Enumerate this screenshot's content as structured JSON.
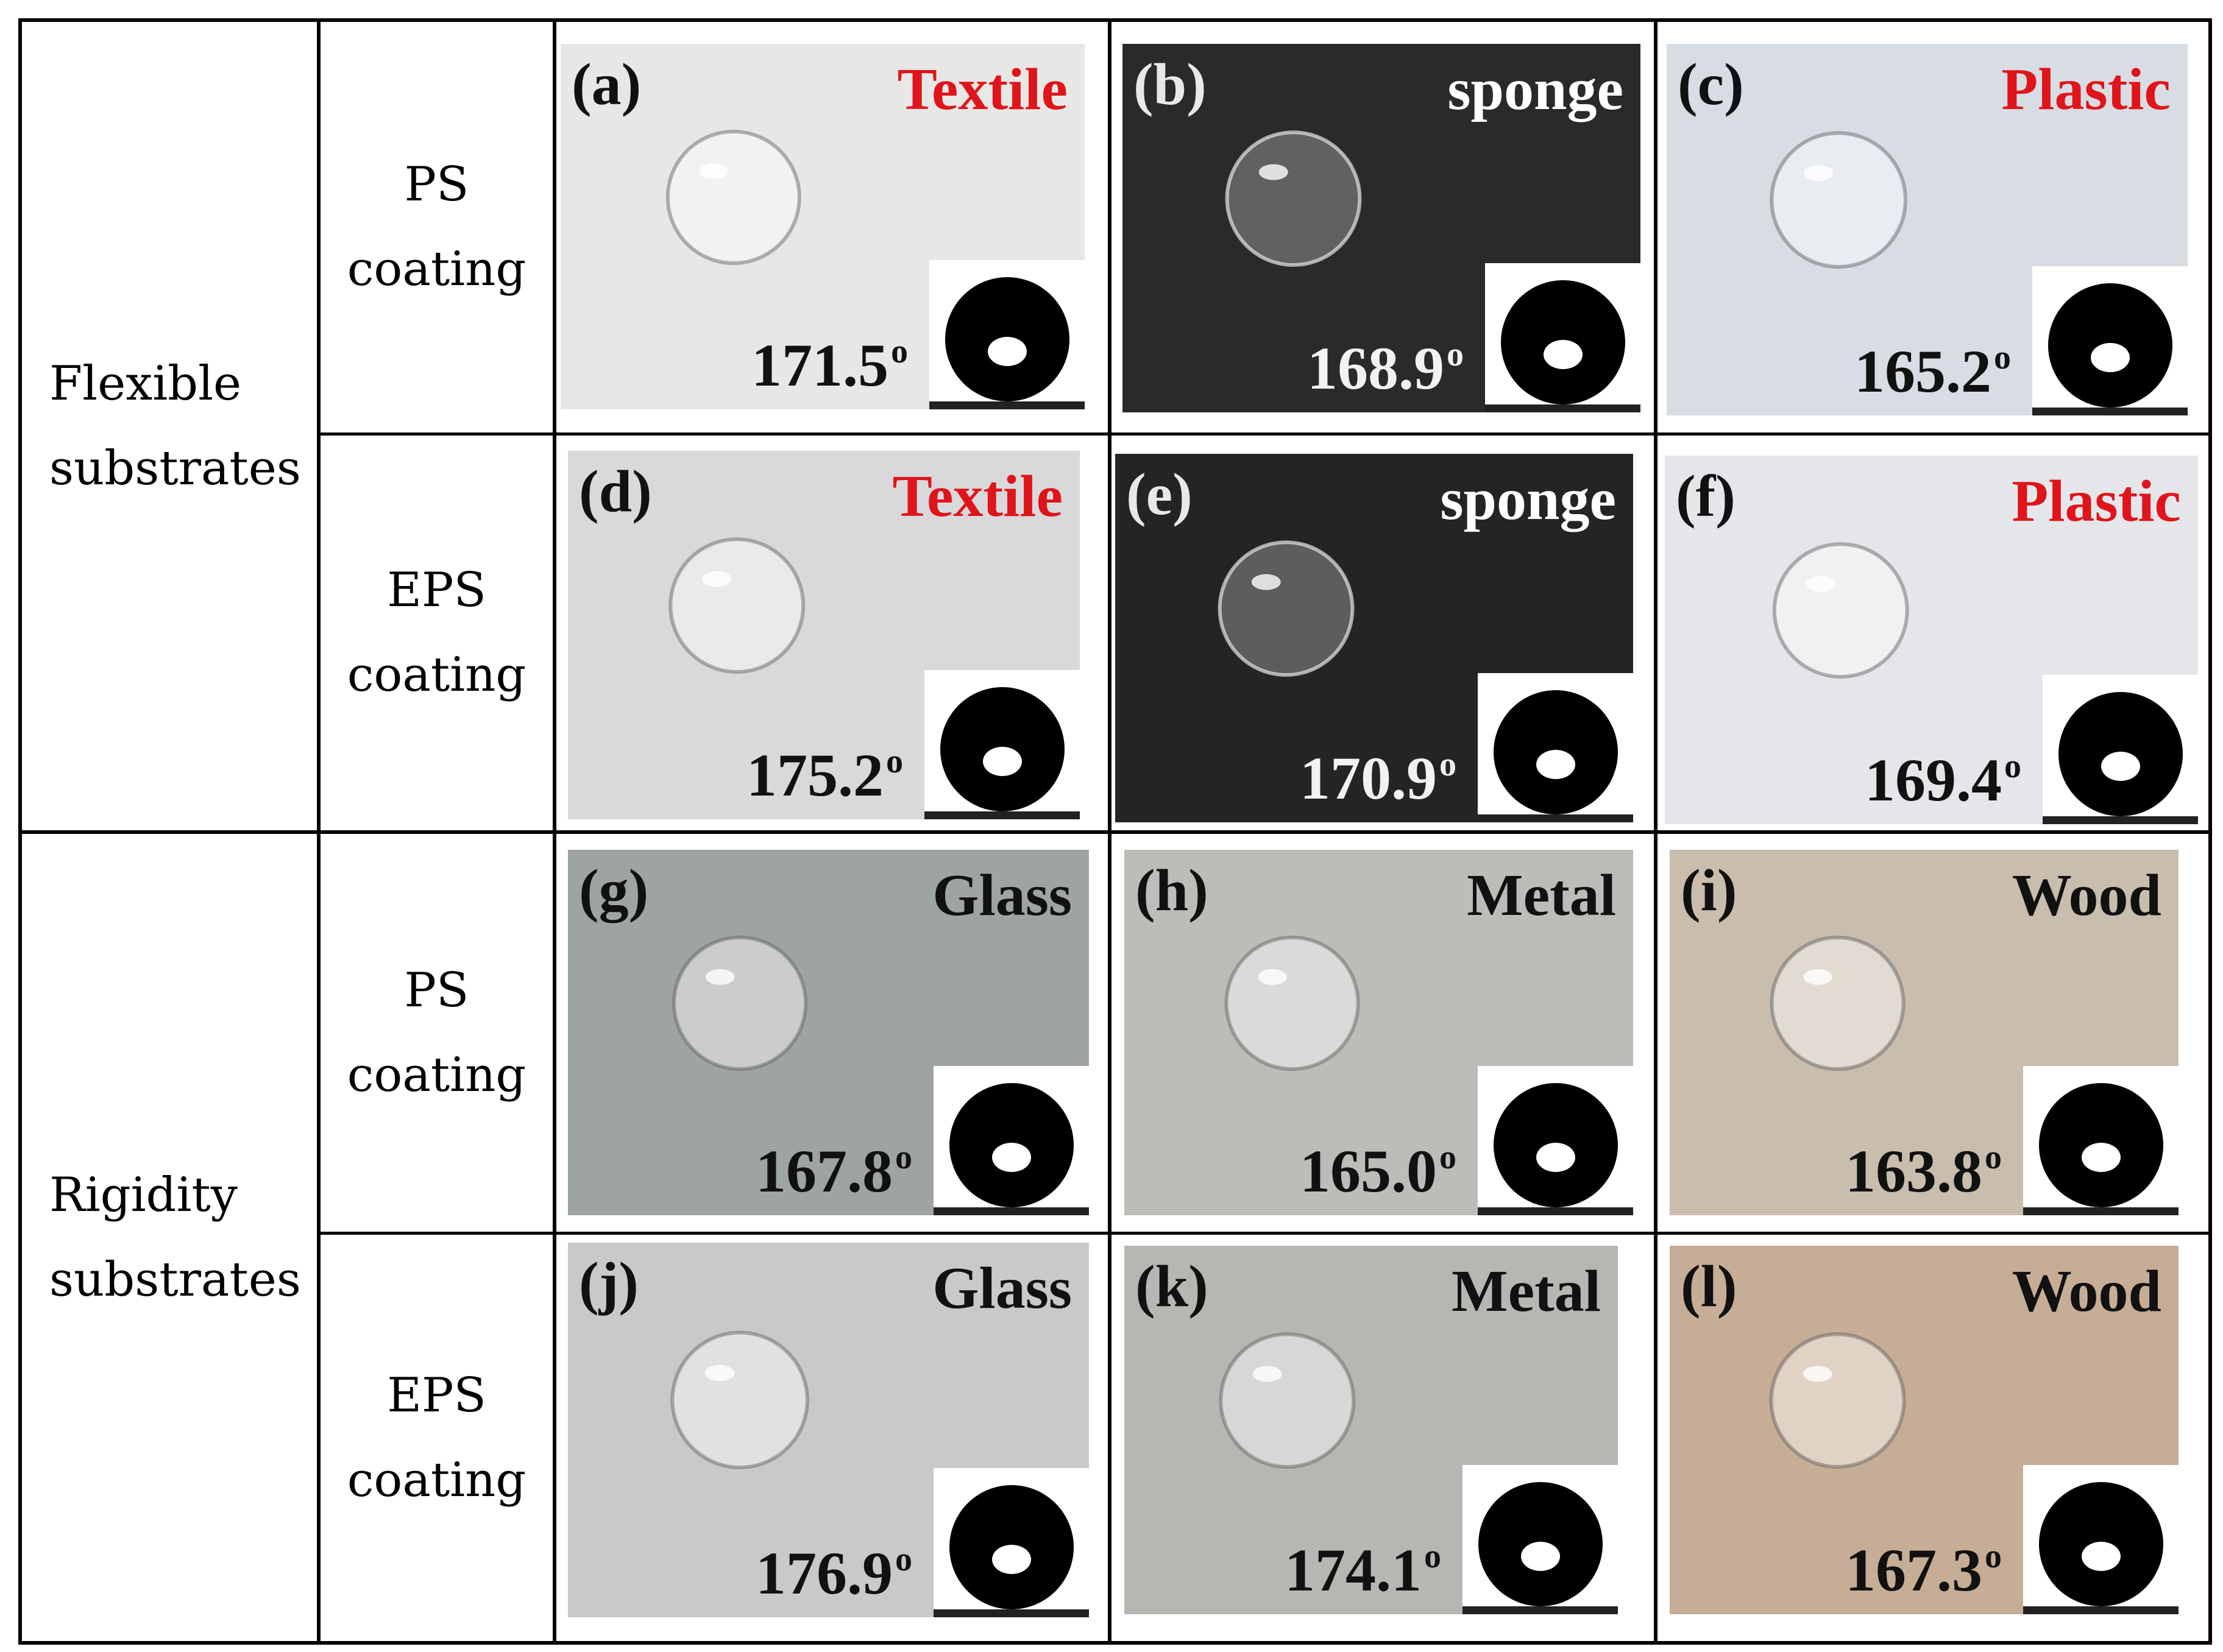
{
  "row_groups": [
    {
      "label_line1": "Flexible",
      "label_line2": "substrates"
    },
    {
      "label_line1": "Rigidity",
      "label_line2": "substrates"
    }
  ],
  "coatings": [
    {
      "line1": "PS",
      "line2": "coating"
    },
    {
      "line1": "EPS",
      "line2": "coating"
    },
    {
      "line1": "PS",
      "line2": "coating"
    },
    {
      "line1": "EPS",
      "line2": "coating"
    }
  ],
  "panels": [
    {
      "letter": "(a)",
      "substrate": "Textile",
      "angle": "171.5",
      "degree": "o",
      "substrate_color": "#e0141b",
      "background": "#e7e7e5"
    },
    {
      "letter": "(b)",
      "substrate": "sponge",
      "angle": "168.9",
      "degree": "o",
      "substrate_color": "#ffffff",
      "background": "#2a2a2a"
    },
    {
      "letter": "(c)",
      "substrate": "Plastic",
      "angle": "165.2",
      "degree": "o",
      "substrate_color": "#e0141b",
      "background": "#d7dde3"
    },
    {
      "letter": "(d)",
      "substrate": "Textile",
      "angle": "175.2",
      "degree": "o",
      "substrate_color": "#e0141b",
      "background": "#d9d9dc"
    },
    {
      "letter": "(e)",
      "substrate": "sponge",
      "angle": "170.9",
      "degree": "o",
      "substrate_color": "#ffffff",
      "background": "#242424"
    },
    {
      "letter": "(f)",
      "substrate": "Plastic",
      "angle": "169.4",
      "degree": "o",
      "substrate_color": "#e0141b",
      "background": "#e4e6ea"
    },
    {
      "letter": "(g)",
      "substrate": "Glass",
      "angle": "167.8",
      "degree": "o",
      "substrate_color": "#111111",
      "background": "#9ea4a0"
    },
    {
      "letter": "(h)",
      "substrate": "Metal",
      "angle": "165.0",
      "degree": "o",
      "substrate_color": "#111111",
      "background": "#bdbcb8"
    },
    {
      "letter": "(i)",
      "substrate": "Wood",
      "angle": "163.8",
      "degree": "o",
      "substrate_color": "#111111",
      "background": "#c9bdae"
    },
    {
      "letter": "(j)",
      "substrate": "Glass",
      "angle": "176.9",
      "degree": "o",
      "substrate_color": "#111111",
      "background": "#c7c9cb"
    },
    {
      "letter": "(k)",
      "substrate": "Metal",
      "angle": "174.1",
      "degree": "o",
      "substrate_color": "#111111",
      "background": "#b7b6b3"
    },
    {
      "letter": "(l)",
      "substrate": "Wood",
      "angle": "167.3",
      "degree": "o",
      "substrate_color": "#111111",
      "background": "#c6ad95"
    }
  ]
}
